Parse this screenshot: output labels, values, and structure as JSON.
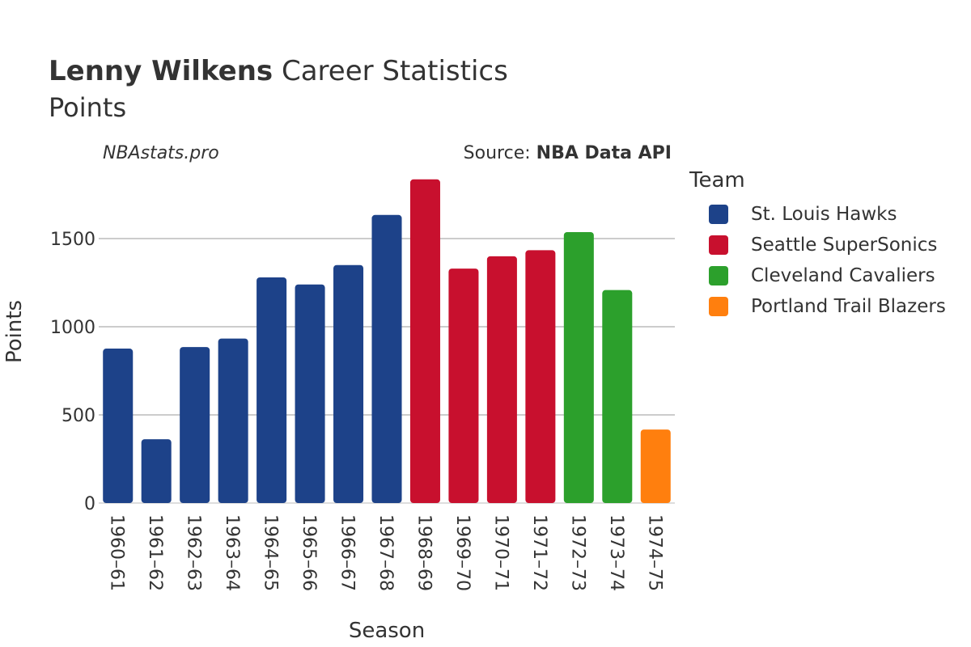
{
  "chart": {
    "title_bold": "Lenny Wilkens",
    "title_rest": "Career Statistics",
    "subtitle": "Points",
    "credit": "NBAstats.pro",
    "source_prefix": "Source:",
    "source_name": "NBA Data API"
  },
  "legend": {
    "title": "Team",
    "items": [
      {
        "label": "St. Louis Hawks",
        "color": "#1d4289"
      },
      {
        "label": "Seattle SuperSonics",
        "color": "#c8102e"
      },
      {
        "label": "Cleveland Cavaliers",
        "color": "#2ca02c"
      },
      {
        "label": "Portland Trail Blazers",
        "color": "#ff7f0e"
      }
    ]
  },
  "chart_data": {
    "type": "bar",
    "title": "Lenny Wilkens Career Statistics",
    "subtitle": "Points",
    "xlabel": "Season",
    "ylabel": "Points",
    "ylim": [
      0,
      1890
    ],
    "yticks": [
      0,
      500,
      1000,
      1500
    ],
    "grid": true,
    "legend_position": "right",
    "categories": [
      "1960–61",
      "1961–62",
      "1962–63",
      "1963–64",
      "1964–65",
      "1965–66",
      "1966–67",
      "1967–68",
      "1968–69",
      "1969–70",
      "1970–71",
      "1971–72",
      "1972–73",
      "1973–74",
      "1974–75"
    ],
    "values": [
      876,
      362,
      885,
      933,
      1280,
      1240,
      1350,
      1634,
      1836,
      1330,
      1400,
      1434,
      1537,
      1208,
      417
    ],
    "teams": [
      "St. Louis Hawks",
      "St. Louis Hawks",
      "St. Louis Hawks",
      "St. Louis Hawks",
      "St. Louis Hawks",
      "St. Louis Hawks",
      "St. Louis Hawks",
      "St. Louis Hawks",
      "Seattle SuperSonics",
      "Seattle SuperSonics",
      "Seattle SuperSonics",
      "Seattle SuperSonics",
      "Cleveland Cavaliers",
      "Cleveland Cavaliers",
      "Portland Trail Blazers"
    ]
  }
}
